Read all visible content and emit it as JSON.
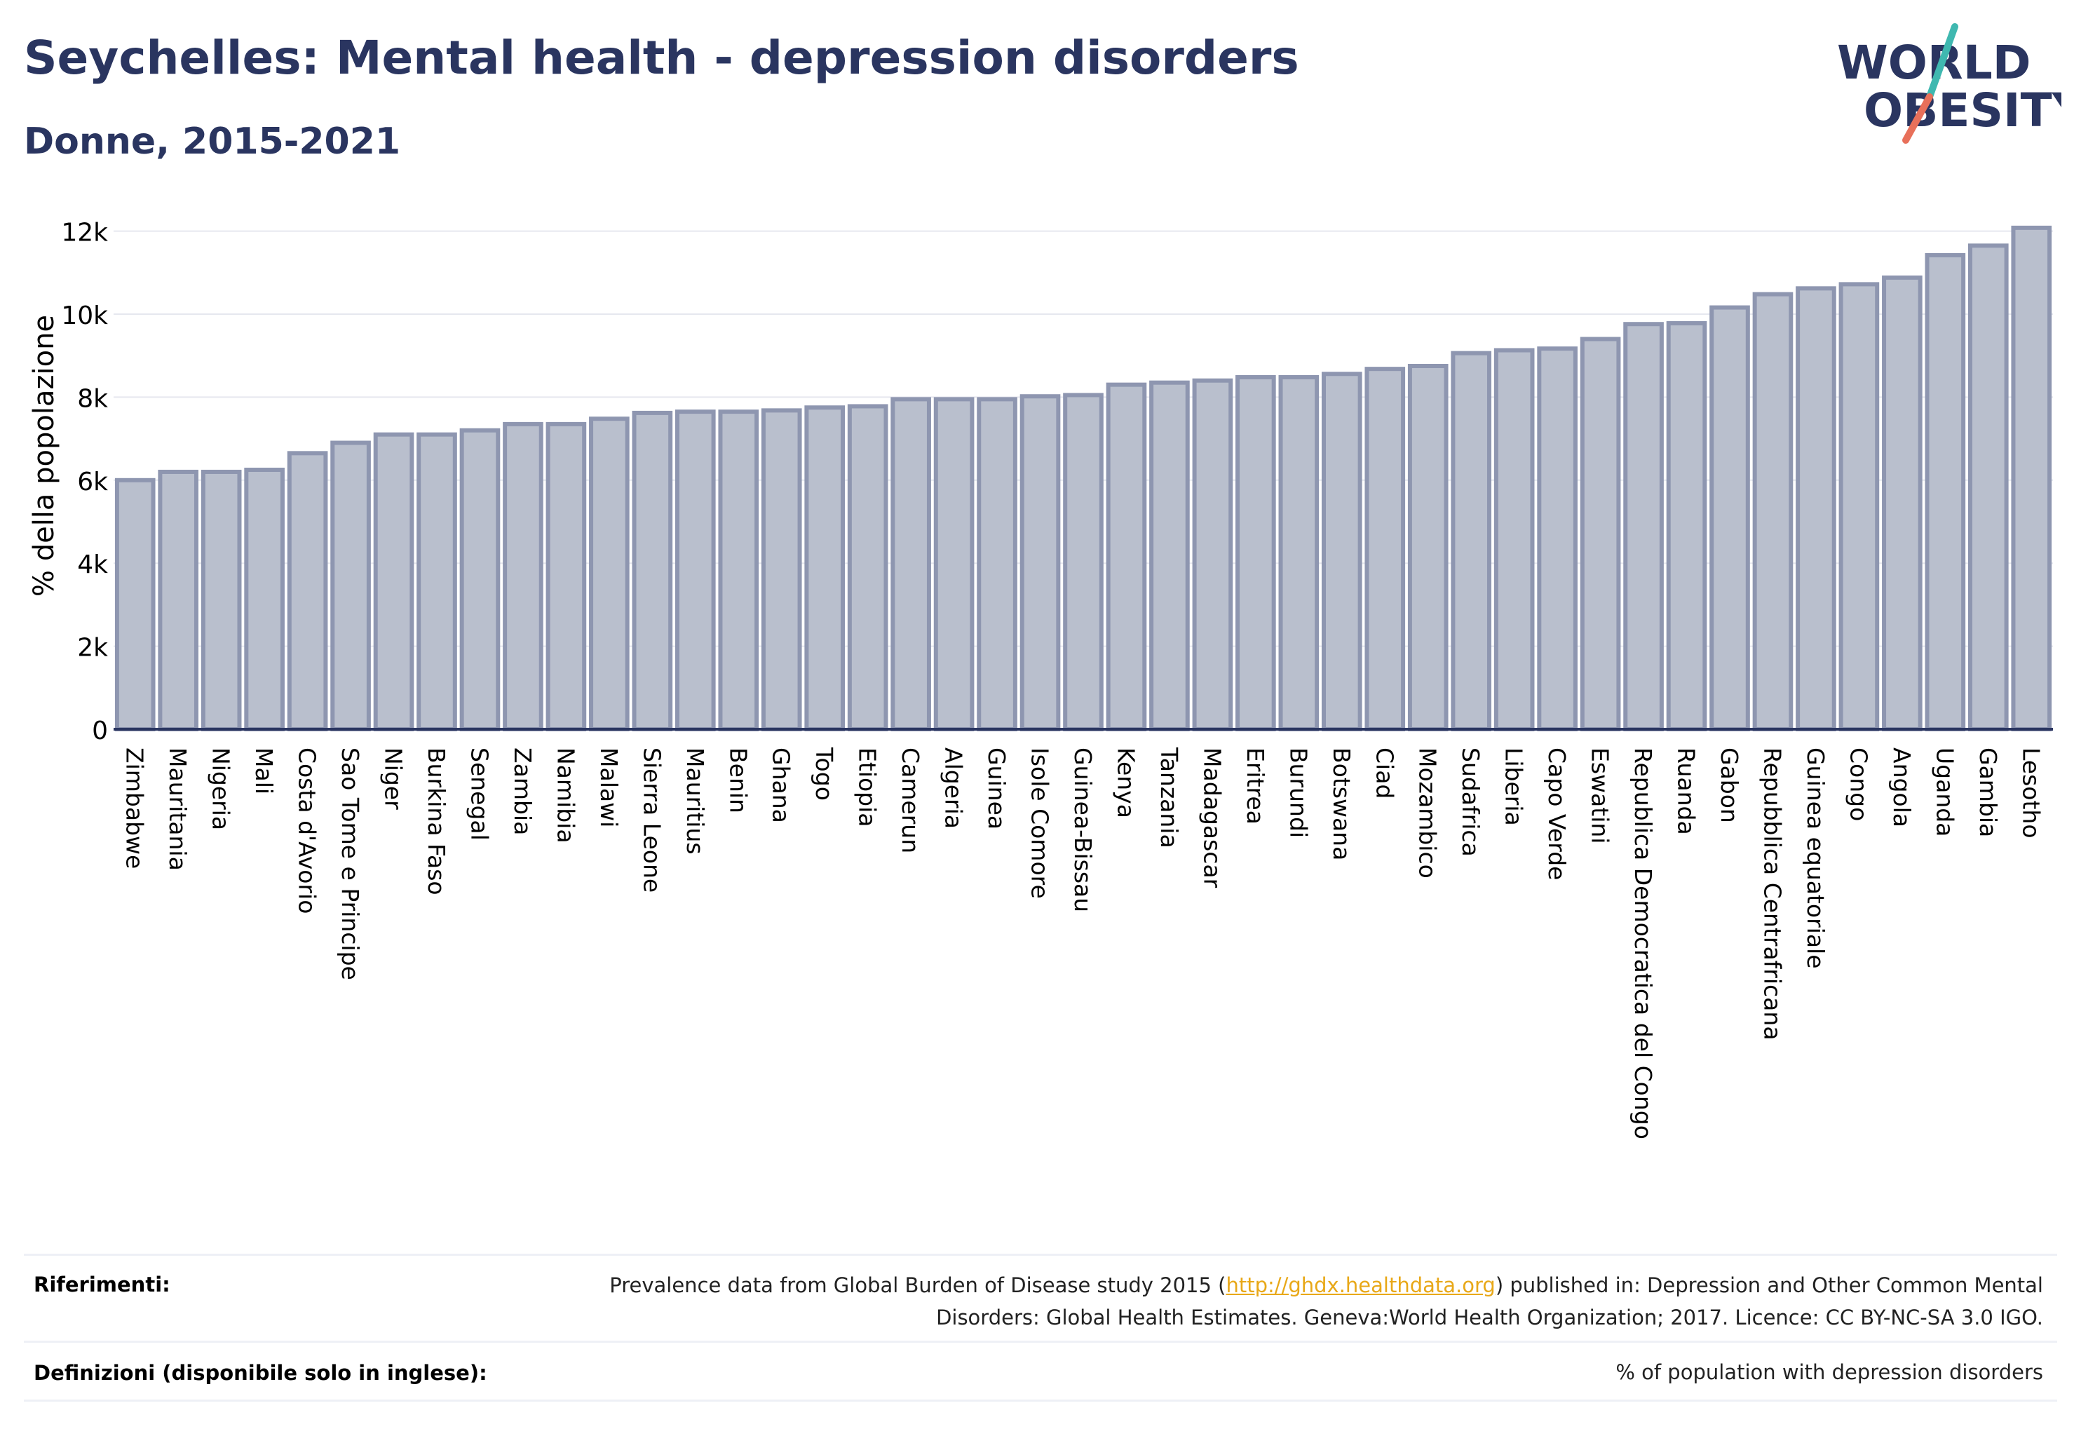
{
  "header": {
    "title": "Seychelles: Mental health - depression disorders",
    "subtitle": "Donne, 2015-2021"
  },
  "logo": {
    "line1": "WORLD",
    "line2": "OBESITY",
    "colors": {
      "text": "#2a3560",
      "slash_top": "#3fb8b0",
      "slash_bottom": "#e8705a"
    }
  },
  "chart_data": {
    "type": "bar",
    "title": "",
    "xlabel": "",
    "ylabel": "% della popolazione",
    "ylim": [
      0,
      12500
    ],
    "yticks": [
      {
        "value": 0,
        "label": "0"
      },
      {
        "value": 2000,
        "label": "2k"
      },
      {
        "value": 4000,
        "label": "4k"
      },
      {
        "value": 6000,
        "label": "6k"
      },
      {
        "value": 8000,
        "label": "8k"
      },
      {
        "value": 10000,
        "label": "10k"
      },
      {
        "value": 12000,
        "label": "12k"
      }
    ],
    "grid": true,
    "legend": "none",
    "colors": {
      "bar_fill": "#b9bfcd",
      "bar_edge": "#8e96b0",
      "grid": "#e6e8ef",
      "axis": "#2a3560",
      "text": "#000000"
    },
    "categories": [
      "Zimbabwe",
      "Mauritania",
      "Nigeria",
      "Mali",
      "Costa d'Avorio",
      "Sao Tome e Principe",
      "Niger",
      "Burkina Faso",
      "Senegal",
      "Zambia",
      "Namibia",
      "Malawi",
      "Sierra Leone",
      "Mauritius",
      "Benin",
      "Ghana",
      "Togo",
      "Etiopia",
      "Camerun",
      "Algeria",
      "Guinea",
      "Isole Comore",
      "Guinea-Bissau",
      "Kenya",
      "Tanzania",
      "Madagascar",
      "Eritrea",
      "Burundi",
      "Botswana",
      "Ciad",
      "Mozambico",
      "Sudafrica",
      "Liberia",
      "Capo Verde",
      "Eswatini",
      "Republica Democratica del Congo",
      "Ruanda",
      "Gabon",
      "Repubblica Centrafricana",
      "Guinea equatoriale",
      "Congo",
      "Angola",
      "Uganda",
      "Gambia",
      "Lesotho"
    ],
    "values": [
      6000,
      6200,
      6200,
      6250,
      6650,
      6900,
      7100,
      7100,
      7200,
      7350,
      7350,
      7480,
      7620,
      7650,
      7650,
      7680,
      7750,
      7780,
      7950,
      7950,
      7950,
      8020,
      8050,
      8300,
      8350,
      8400,
      8480,
      8480,
      8560,
      8680,
      8750,
      9060,
      9130,
      9170,
      9400,
      9760,
      9780,
      10160,
      10480,
      10620,
      10720,
      10880,
      11420,
      11650,
      12080
    ]
  },
  "footer": {
    "references_label": "Riferimenti:",
    "references_before": "Prevalence data from Global Burden of Disease study 2015 (",
    "references_link": "http://ghdx.healthdata.org",
    "references_after": ") published in: Depression and Other Common Mental Disorders: Global Health Estimates. Geneva:World Health Organization; 2017. Licence: CC BY-NC-SA 3.0 IGO.",
    "definitions_label": "Definizioni (disponibile solo in inglese):",
    "definitions_text": "% of population with depression disorders"
  }
}
